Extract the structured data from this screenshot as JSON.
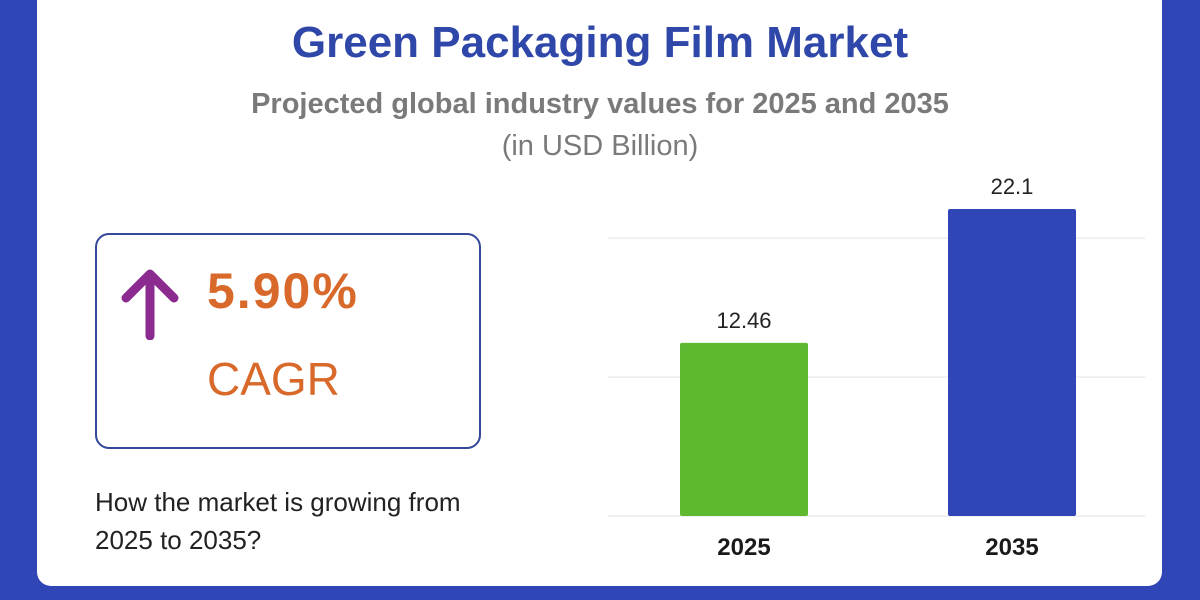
{
  "title": "Green Packaging Film Market",
  "subtitle": "Projected global industry values for 2025 and 2035",
  "unit": "(in USD Billion)",
  "cagr": {
    "value": "5.90%",
    "label": "CAGR",
    "arrow_icon": "arrow-up-icon",
    "arrow_color": "#8b2a8f",
    "text_color": "#d8692a"
  },
  "question": "How the market is growing from 2025 to 2035?",
  "chart_data": {
    "type": "bar",
    "title": "Green Packaging Film Market",
    "categories": [
      "2025",
      "2035"
    ],
    "values": [
      12.46,
      22.1
    ],
    "data_labels": [
      "12.46",
      "22.1"
    ],
    "colors": [
      "#5db92f",
      "#3146b6"
    ],
    "ylim": [
      0,
      22.1
    ],
    "grid": true,
    "xlabel": "",
    "ylabel": "USD Billion"
  }
}
